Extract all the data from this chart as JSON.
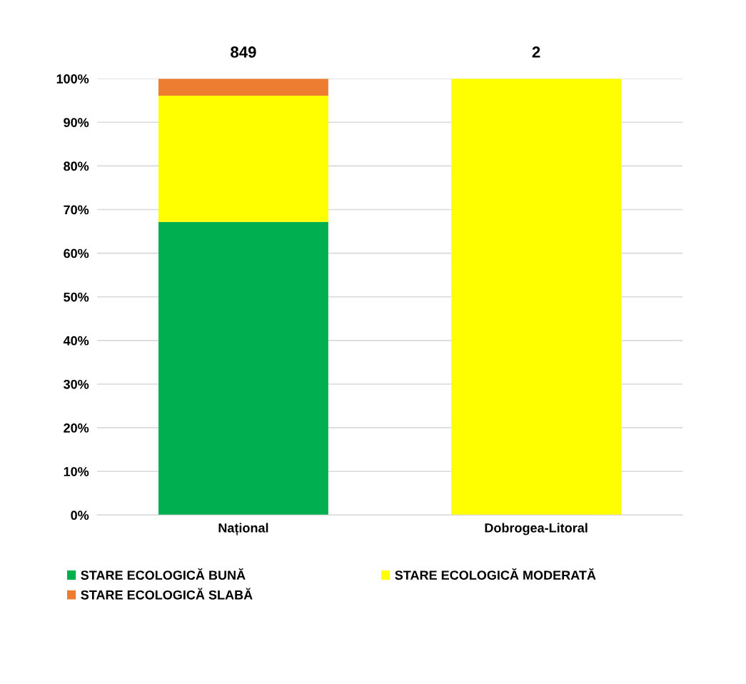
{
  "chart_data": {
    "type": "bar",
    "stacked": true,
    "categories": [
      "Național",
      "Dobrogea-Litoral"
    ],
    "series": [
      {
        "name": "STARE ECOLOGICĂ BUNĂ",
        "color": "#00b050",
        "values": [
          67.2,
          0
        ]
      },
      {
        "name": "STARE ECOLOGICĂ MODERATĂ",
        "color": "#ffff00",
        "values": [
          28.9,
          100
        ]
      },
      {
        "name": "STARE ECOLOGICĂ SLABĂ",
        "color": "#ed7d31",
        "values": [
          3.9,
          0
        ]
      }
    ],
    "annotations": [
      {
        "text": "849",
        "x": "Național",
        "y": 100
      },
      {
        "text": "2",
        "x": "Dobrogea-Litoral",
        "y": 100
      }
    ],
    "ylim": [
      0,
      100
    ],
    "yticks": [
      {
        "value": 0,
        "label": "0%"
      },
      {
        "value": 10,
        "label": "10%"
      },
      {
        "value": 20,
        "label": "20%"
      },
      {
        "value": 30,
        "label": "30%"
      },
      {
        "value": 40,
        "label": "40%"
      },
      {
        "value": 50,
        "label": "50%"
      },
      {
        "value": 60,
        "label": "60%"
      },
      {
        "value": 70,
        "label": "70%"
      },
      {
        "value": 80,
        "label": "80%"
      },
      {
        "value": 90,
        "label": "90%"
      },
      {
        "value": 100,
        "label": "100%"
      }
    ],
    "grid": "y",
    "legend": "bottom"
  }
}
